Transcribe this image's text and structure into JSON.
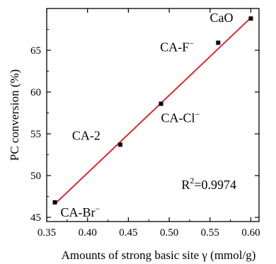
{
  "chart_data": {
    "type": "scatter",
    "xlabel": "Amounts of strong basic site γ (mmol/g)",
    "ylabel": "PC conversion (%)",
    "xlim": [
      0.35,
      0.61
    ],
    "ylim": [
      44.5,
      70.0
    ],
    "xticks": [
      0.35,
      0.4,
      0.45,
      0.5,
      0.55,
      0.6
    ],
    "xtick_labels": [
      "0.35",
      "0.40",
      "0.45",
      "0.50",
      "0.55",
      "0.60"
    ],
    "yticks": [
      45,
      50,
      55,
      60,
      65
    ],
    "ytick_labels": [
      "45",
      "50",
      "55",
      "60",
      "65"
    ],
    "grid": false,
    "legend": false,
    "points": [
      {
        "x": 0.36,
        "y": 46.8,
        "base": "CA-Br",
        "sup": "−"
      },
      {
        "x": 0.44,
        "y": 53.7,
        "base": "CA-2",
        "sup": ""
      },
      {
        "x": 0.49,
        "y": 58.6,
        "base": "CA-Cl",
        "sup": "−"
      },
      {
        "x": 0.56,
        "y": 65.9,
        "base": "CA-F",
        "sup": "−"
      },
      {
        "x": 0.6,
        "y": 68.8,
        "base": "CaO",
        "sup": ""
      }
    ],
    "fit": {
      "x1": 0.36,
      "y1": 46.6,
      "x2": 0.6,
      "y2": 68.9
    },
    "annotation": {
      "base": "R",
      "sup": "2",
      "rest": "=0.9974",
      "x": 0.515,
      "y": 48.4
    },
    "colors": {
      "points": "#000000",
      "fit_line": "#e8141c",
      "axis": "#000000"
    }
  }
}
